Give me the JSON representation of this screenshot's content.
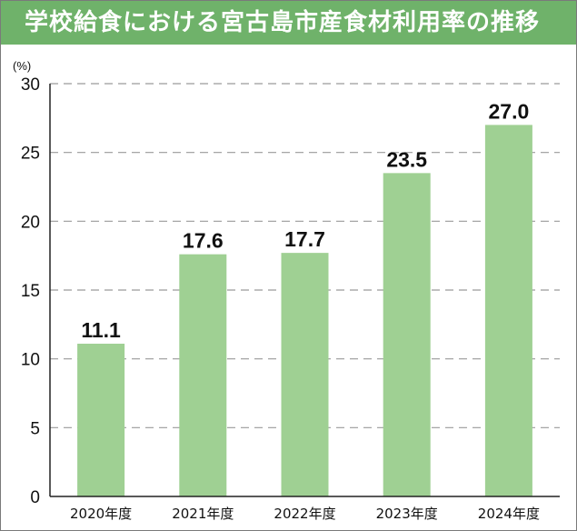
{
  "title": "学校給食における宮古島市産食材利用率の推移",
  "colors": {
    "title_bg": "#6fb26a",
    "bar": "#9fd093",
    "grid": "#9a9a9a"
  },
  "chart_data": {
    "type": "bar",
    "title": "学校給食における宮古島市産食材利用率の推移",
    "ylabel": "(%)",
    "xlabel": "",
    "categories": [
      "2020年度",
      "2021年度",
      "2022年度",
      "2023年度",
      "2024年度"
    ],
    "values": [
      11.1,
      17.6,
      17.7,
      23.5,
      27.0
    ],
    "value_labels": [
      "11.1",
      "17.6",
      "17.7",
      "23.5",
      "27.0"
    ],
    "ylim": [
      0,
      30
    ],
    "yticks": [
      "0",
      "5",
      "10",
      "15",
      "20",
      "25",
      "30"
    ],
    "grid": true,
    "grid_style": "dashed"
  }
}
